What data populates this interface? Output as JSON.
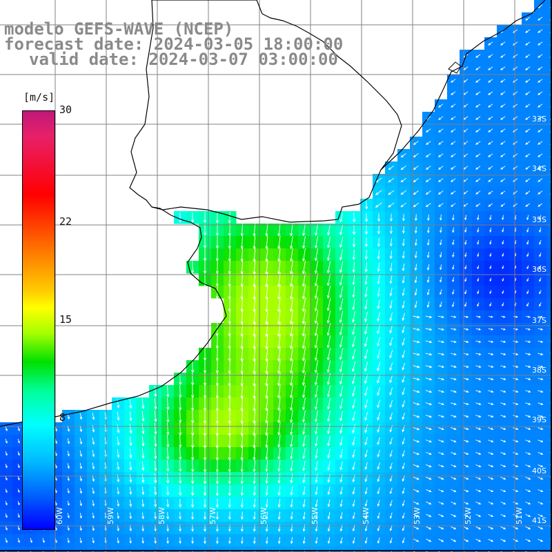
{
  "title": {
    "line1": "modelo GEFS-WAVE (NCEP)",
    "line2": "forecast date: 2024-03-05 18:00:00",
    "line3": "valid date: 2024-03-07 03:00:00"
  },
  "colorbar": {
    "unit": "[m/s]",
    "ticks": [
      {
        "label": "30",
        "value": 30
      },
      {
        "label": "22",
        "value": 22
      },
      {
        "label": "15",
        "value": 15
      },
      {
        "label": "8",
        "value": 8
      }
    ],
    "range": [
      0,
      30
    ]
  },
  "latitude_labels": [
    "33S",
    "34S",
    "35S",
    "36S",
    "37S",
    "38S",
    "39S",
    "40S",
    "41S"
  ],
  "longitude_labels": [
    "60W",
    "59W",
    "58W",
    "57W",
    "56W",
    "55W",
    "54W",
    "53W",
    "52W",
    "51W"
  ],
  "colors": {
    "title_gray": "#8a8a8a",
    "land": "#ffffff",
    "grid": "#7a7a7a",
    "coast": "#000000",
    "arrow": "#ffffff"
  }
}
